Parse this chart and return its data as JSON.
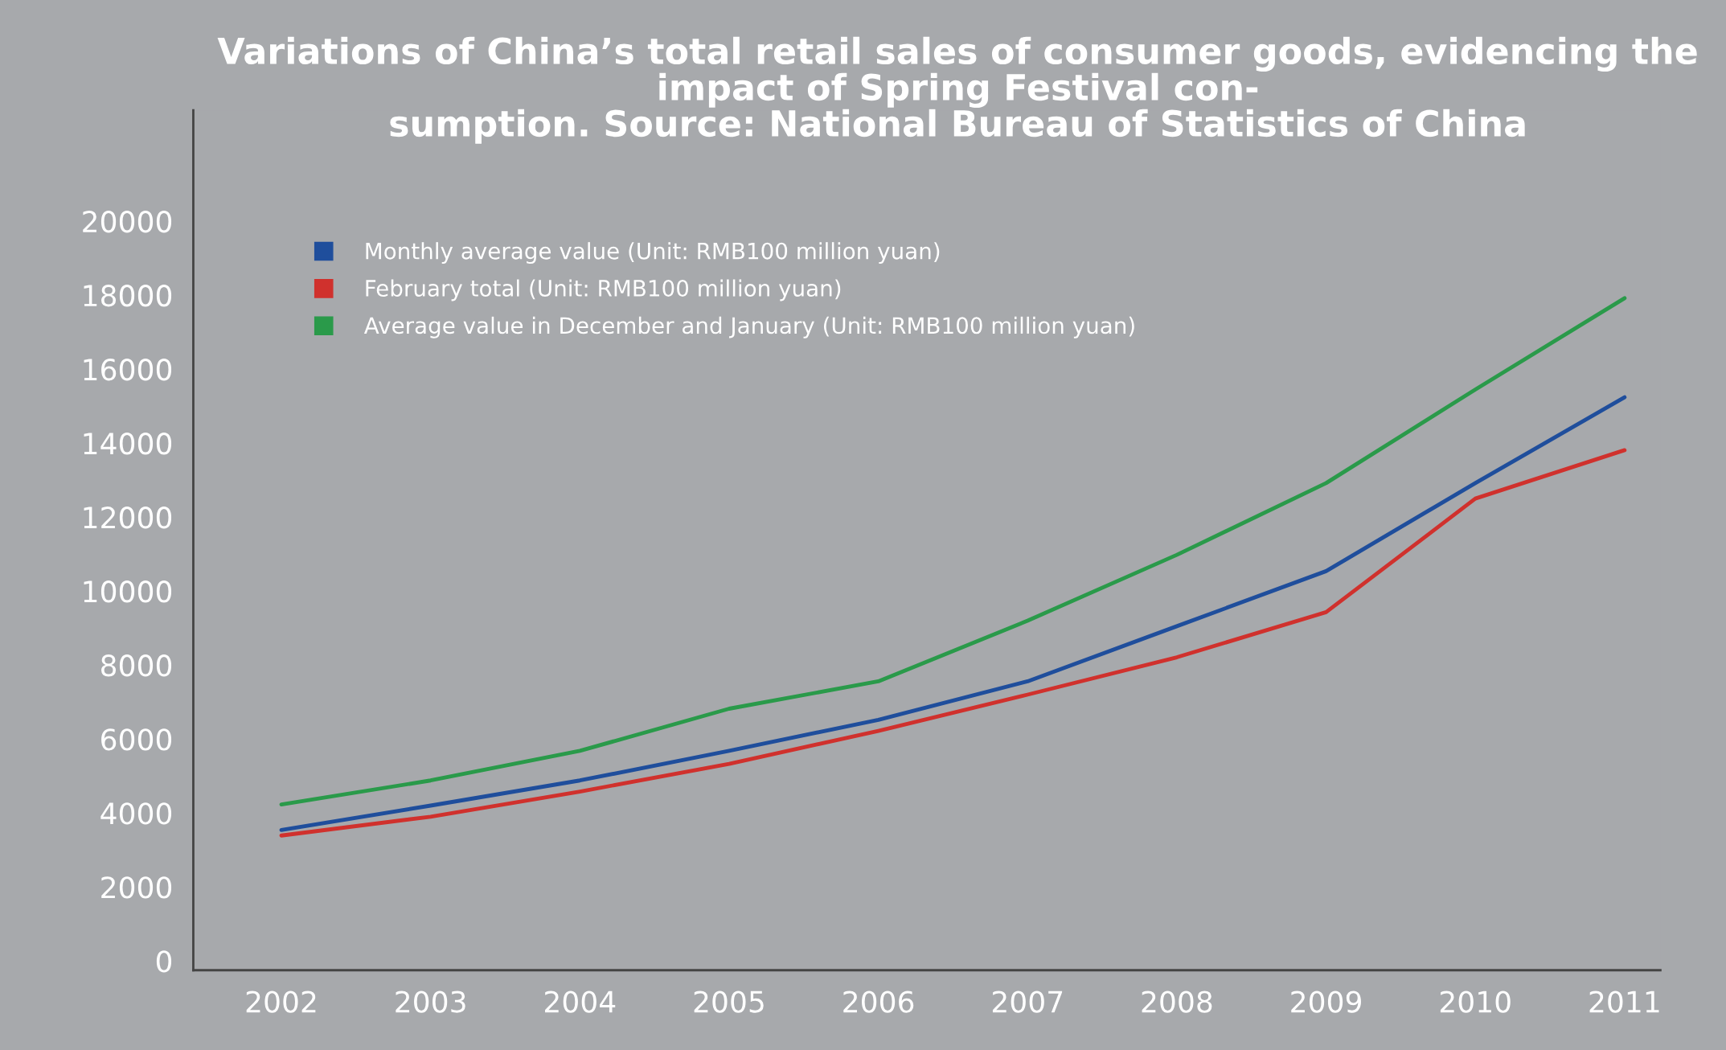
{
  "chart_data": {
    "type": "line",
    "title": "Variations of China’s total retail sales of consumer goods, evidencing the impact of Spring Festival con-\nsumption. Source: National Bureau of Statistics of China",
    "categories": [
      "2002",
      "2003",
      "2004",
      "2005",
      "2006",
      "2007",
      "2008",
      "2009",
      "2010",
      "2011"
    ],
    "series": [
      {
        "name": "Monthly average value (Unit: RMB100 million yuan)",
        "color": "#1f4e9c",
        "values": [
          3540,
          4200,
          4880,
          5680,
          6520,
          7560,
          9050,
          10540,
          12920,
          15240
        ]
      },
      {
        "name": "February total (Unit: RMB100 million yuan)",
        "color": "#d0312d",
        "values": [
          3390,
          3900,
          4580,
          5330,
          6220,
          7200,
          8210,
          9430,
          12500,
          13810
        ]
      },
      {
        "name": "Average value in December and January (Unit: RMB100 million yuan)",
        "color": "#2a9a4a",
        "values": [
          4230,
          4880,
          5680,
          6820,
          7560,
          9200,
          10980,
          12920,
          15450,
          17920
        ]
      }
    ],
    "ylim": [
      -250,
      23000
    ],
    "yticks": [
      0,
      2000,
      4000,
      6000,
      8000,
      10000,
      12000,
      14000,
      16000,
      18000,
      20000
    ],
    "grid": false,
    "legend": "top left",
    "marker": "none",
    "line_style": "solid"
  }
}
